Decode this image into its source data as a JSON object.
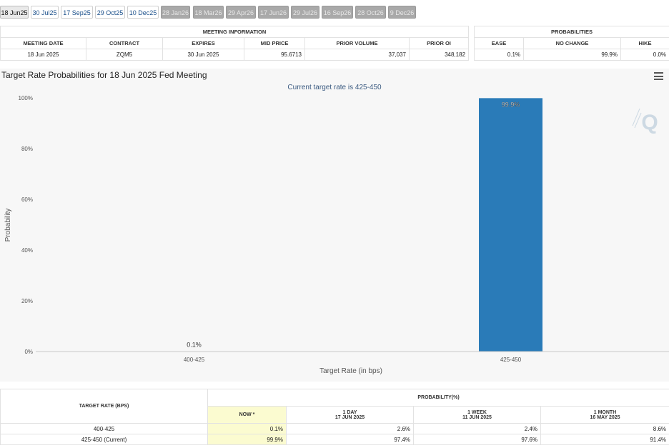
{
  "tabs": [
    {
      "label": "18 Jun25",
      "state": "active"
    },
    {
      "label": "30 Jul25",
      "state": "normal"
    },
    {
      "label": "17 Sep25",
      "state": "normal"
    },
    {
      "label": "29 Oct25",
      "state": "normal"
    },
    {
      "label": "10 Dec25",
      "state": "normal"
    },
    {
      "label": "28 Jan26",
      "state": "disabled"
    },
    {
      "label": "18 Mar26",
      "state": "disabled"
    },
    {
      "label": "29 Apr26",
      "state": "disabled"
    },
    {
      "label": "17 Jun26",
      "state": "disabled"
    },
    {
      "label": "29 Jul26",
      "state": "disabled"
    },
    {
      "label": "16 Sep26",
      "state": "disabled"
    },
    {
      "label": "28 Oct26",
      "state": "disabled"
    },
    {
      "label": "9 Dec26",
      "state": "disabled"
    }
  ],
  "meeting_info": {
    "header": "MEETING INFORMATION",
    "columns": [
      "MEETING DATE",
      "CONTRACT",
      "EXPIRES",
      "MID PRICE",
      "PRIOR VOLUME",
      "PRIOR OI"
    ],
    "row": [
      "18 Jun 2025",
      "ZQM5",
      "30 Jun 2025",
      "95.6713",
      "37,037",
      "348,182"
    ]
  },
  "probabilities": {
    "header": "PROBABILITIES",
    "columns": [
      "EASE",
      "NO CHANGE",
      "HIKE"
    ],
    "row": [
      "0.1%",
      "99.9%",
      "0.0%"
    ]
  },
  "chart_data": {
    "type": "bar",
    "title": "Target Rate Probabilities for 18 Jun 2025 Fed Meeting",
    "subtitle": "Current target rate is 425-450",
    "categories": [
      "400-425",
      "425-450"
    ],
    "values": [
      0.1,
      99.9
    ],
    "value_labels": [
      "0.1%",
      "99.9%"
    ],
    "xlabel": "Target Rate (in bps)",
    "ylabel": "Probability",
    "ylim": [
      0,
      100
    ],
    "yticks": [
      "0%",
      "20%",
      "40%",
      "60%",
      "80%",
      "100%"
    ],
    "bar_color": "#2a7bb8",
    "grid": false
  },
  "prob_table": {
    "target_header": "TARGET RATE (BPS)",
    "prob_header": "PROBABILITY(%)",
    "columns": [
      {
        "line1": "NOW *",
        "line2": ""
      },
      {
        "line1": "1 DAY",
        "line2": "17 JUN 2025"
      },
      {
        "line1": "1 WEEK",
        "line2": "11 JUN 2025"
      },
      {
        "line1": "1 MONTH",
        "line2": "16 MAY 2025"
      }
    ],
    "rows": [
      {
        "rate": "400-425",
        "values": [
          "0.1%",
          "2.6%",
          "2.4%",
          "8.6%"
        ]
      },
      {
        "rate": "425-450 (Current)",
        "values": [
          "99.9%",
          "97.4%",
          "97.6%",
          "91.4%"
        ]
      }
    ]
  },
  "icons": {
    "menu": "menu-icon",
    "watermark": "q-logo-icon"
  }
}
